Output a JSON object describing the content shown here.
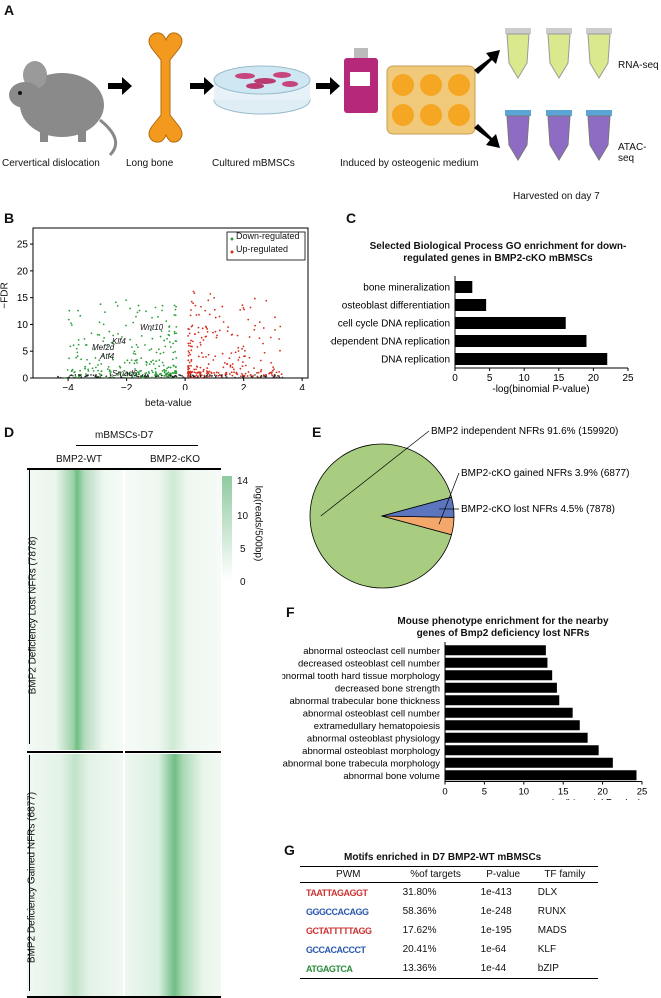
{
  "panel_letters": {
    "A": "A",
    "B": "B",
    "C": "C",
    "D": "D",
    "E": "E",
    "F": "F",
    "G": "G"
  },
  "panelA": {
    "steps": [
      "Cervertical dislocation",
      "Long bone",
      "Cultured mBMSCs",
      "Induced by osteogenic medium"
    ],
    "rna_label": "RNA-seq",
    "atac_label": "ATAC-seq",
    "harvest_label": "Harvested on day 7"
  },
  "panelB": {
    "legend_down": "Down-regulated",
    "legend_up": "Up-regulated",
    "ylabel": "−FDR",
    "xlabel": "beta-value",
    "gene_labels": [
      "Wnt10",
      "Klf4",
      "Mef2d",
      "Atf4",
      "Smad6"
    ],
    "x_ticks": [
      "−4",
      "−2",
      "0",
      "2",
      "4"
    ],
    "y_ticks": [
      "0",
      "5",
      "10",
      "15",
      "20",
      "25"
    ]
  },
  "panelD": {
    "group_label": "mBMSCs-D7",
    "col1": "BMP2-WT",
    "col2": "BMP2-cKO",
    "row1": "BMP2 Deficiency Lost NFRs (7878)",
    "row2": "BMP2 Deficiency Gained NFRs (6877)",
    "colorbar_label": "log(reads/500bp)",
    "colorbar_ticks": [
      "14",
      "10",
      "5",
      "0"
    ]
  },
  "panelG": {
    "title": "Motifs enriched in D7 BMP2-WT mBMSCs",
    "headers": [
      "PWM",
      "%of targets",
      "P-value",
      "TF family"
    ],
    "rows": [
      {
        "pwm": "TAATTAGAGGT",
        "pct": "31.80%",
        "p": "1e-413",
        "tf": "DLX"
      },
      {
        "pwm": "GGGCCACAGG",
        "pct": "58.36%",
        "p": "1e-248",
        "tf": "RUNX"
      },
      {
        "pwm": "GCTATTTTTAGG",
        "pct": "17.62%",
        "p": "1e-195",
        "tf": "MADS"
      },
      {
        "pwm": "GCCACACCCT",
        "pct": "20.41%",
        "p": "1e-64",
        "tf": "KLF"
      },
      {
        "pwm": "ATGAGTCA",
        "pct": "13.36%",
        "p": "1e-44",
        "tf": "bZIP"
      }
    ]
  },
  "colors": {
    "bar": "#000000",
    "green": "#2e9e3a",
    "red": "#d62c1f",
    "pie_main": "#a8cc80",
    "pie_gained": "#f3a76a",
    "pie_lost": "#5b76be",
    "heat": "#3f9e6a"
  },
  "chart_data": [
    {
      "type": "bar",
      "title": "Selected Biological Process GO enrichment for down-regulated genes in BMP2-cKO mBMSCs",
      "categories": [
        "bone mineralization",
        "osteoblast differentiation",
        "cell cycle DNA replication",
        "DNA-dependent DNA replication",
        "DNA replication"
      ],
      "values": [
        2.5,
        4.5,
        16,
        19,
        22
      ],
      "xlabel": "-log(binomial P-value)",
      "xlim": [
        0,
        25
      ],
      "x_ticks": [
        "0",
        "5",
        "10",
        "15",
        "20",
        "25"
      ]
    },
    {
      "type": "pie",
      "slices": [
        {
          "label": "BMP2 independent NFRs 91.6% (159920)",
          "value": 91.6
        },
        {
          "label": "BMP2-cKO gained NFRs 3.9% (6877)",
          "value": 3.9
        },
        {
          "label": "BMP2-cKO lost NFRs 4.5% (7878)",
          "value": 4.5
        }
      ]
    },
    {
      "type": "bar",
      "title": "Mouse phenotype enrichment for the nearby genes of Bmp2 deficiency lost NFRs",
      "categories": [
        "abnormal osteoclast cell number",
        "decreased osteoblast cell number",
        "abnormal tooth hard tissue morphology",
        "decreased bone strength",
        "abnormal trabecular bone thickness",
        "abnormal osteoblast cell number",
        "extramedullary hematopoiesis",
        "abnormal osteoblast physiology",
        "abnormal osteoblast morphology",
        "abnormal bone trabecula morphology",
        "abnormal bone volume"
      ],
      "values": [
        12.8,
        13.0,
        13.6,
        14.2,
        14.5,
        16.2,
        17.1,
        18.1,
        19.5,
        21.3,
        24.3
      ],
      "xlabel": "-log(binomial P-value)",
      "xlim": [
        0,
        25
      ],
      "x_ticks": [
        "0",
        "5",
        "10",
        "15",
        "20",
        "25"
      ]
    }
  ]
}
